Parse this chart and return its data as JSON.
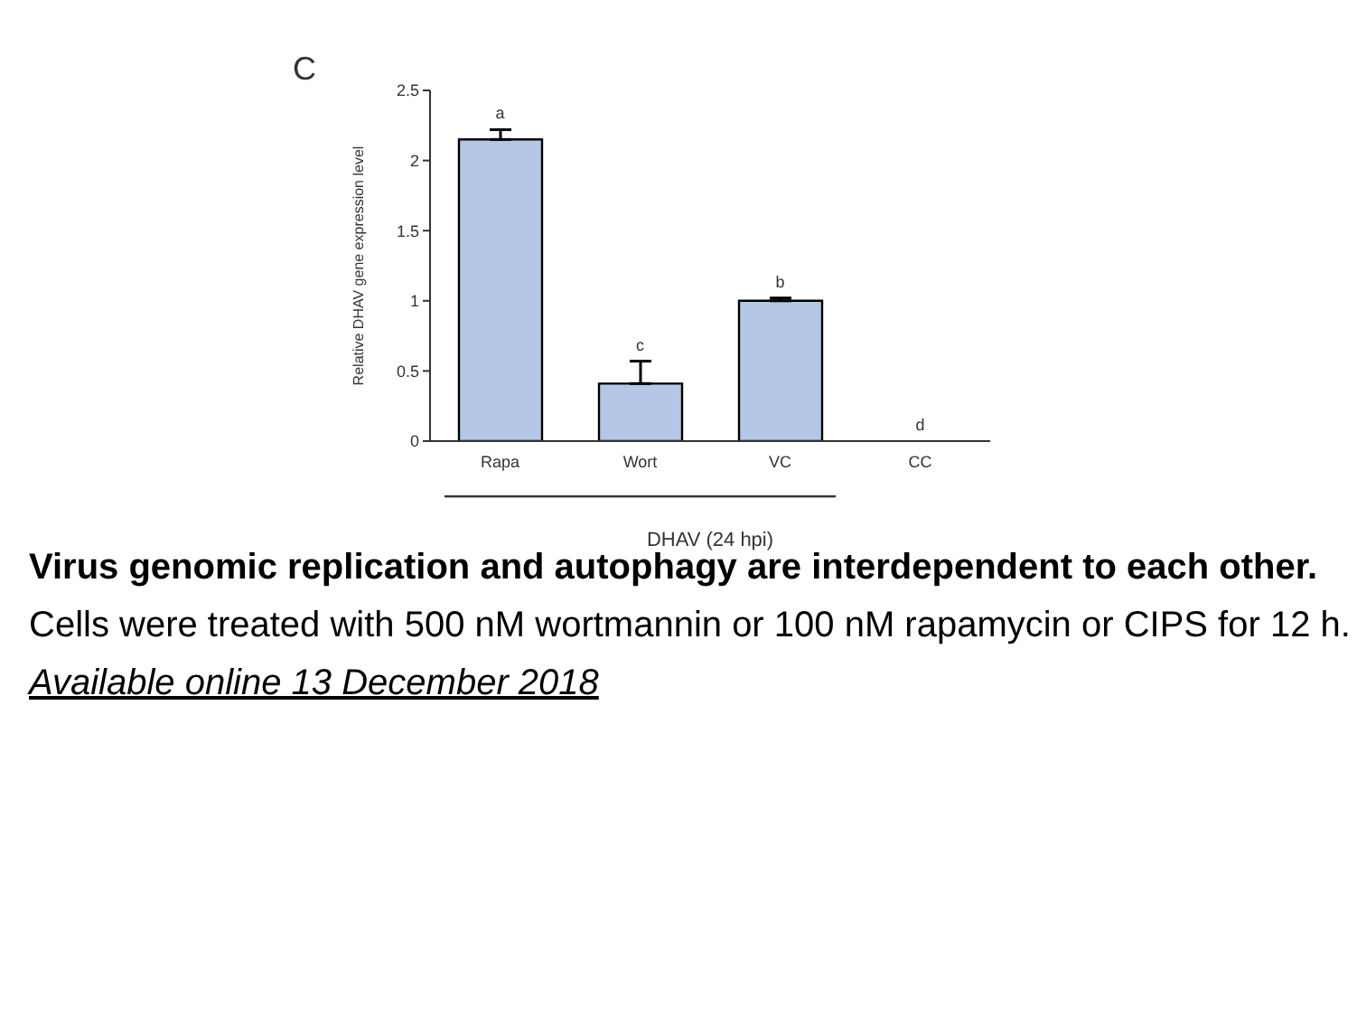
{
  "chart_data": {
    "type": "bar",
    "title": "Virus genomic replication and autophagy are interdependent to each other.",
    "xlabel": "DHAV (24 hpi)",
    "ylabel": "Relative DHAV gene expression level",
    "categories": [
      "Rapa",
      "Wort",
      "VC",
      "CC"
    ],
    "values": [
      2.15,
      0.41,
      1.0,
      0
    ],
    "errors": [
      [
        2.15,
        2.22
      ],
      [
        0.41,
        0.57
      ],
      [
        1.0,
        1.02
      ],
      null
    ],
    "color": "#b4c7e7",
    "ylim": [
      0,
      2.5
    ],
    "yticks": [
      0,
      0.5,
      1,
      1.5,
      2,
      2.5
    ],
    "grid": false,
    "legend": false,
    "annotations": [
      "C",
      {
        "text": "a",
        "x": "Rapa",
        "y": 2.22
      },
      {
        "text": "c",
        "x": "Wort",
        "y": 0.57
      },
      {
        "text": "b",
        "x": "VC",
        "y": 1.02
      },
      {
        "text": "d",
        "x": "CC",
        "y": 0
      },
      "Cells were treated with 500 nM wortmannin or 100 nM rapamycin or CIPS for 12 h.",
      "Available online 13 December 2018"
    ]
  }
}
